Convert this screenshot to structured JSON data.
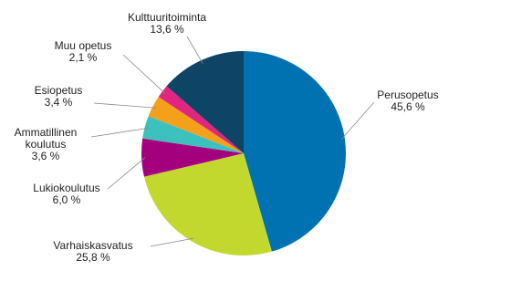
{
  "chart_data": {
    "type": "pie",
    "categories": [
      "Perusopetus",
      "Varhaiskasvatus",
      "Lukiokoulutus",
      "Ammatillinen koulutus",
      "Esiopetus",
      "Muu opetus",
      "Kulttuuritoiminta"
    ],
    "values": [
      45.6,
      25.8,
      6.0,
      3.6,
      3.4,
      2.1,
      13.6
    ],
    "value_labels": [
      "45,6 %",
      "25,8 %",
      "6,0 %",
      "3,6 %",
      "3,4 %",
      "2,1 %",
      "13,6 %"
    ],
    "colors": [
      "#0072b1",
      "#c3d82e",
      "#a4007e",
      "#3cc1bf",
      "#f5a01a",
      "#e0267f",
      "#0e4466"
    ]
  }
}
